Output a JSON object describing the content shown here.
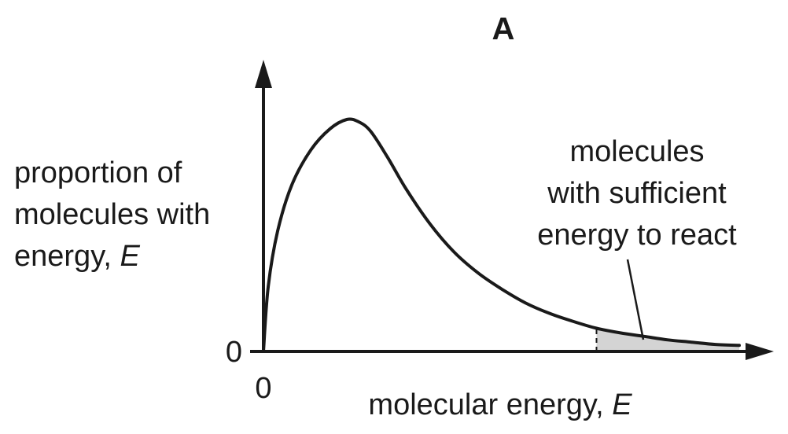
{
  "chart_data": {
    "type": "line",
    "title": "A",
    "xlabel": "molecular energy, ",
    "xlabel_var": "E",
    "ylabel_lines": [
      "proportion of",
      "molecules with",
      "energy, "
    ],
    "ylabel_var": "E",
    "x_origin_label": "0",
    "y_origin_label": "0",
    "xlim": [
      0,
      1.0
    ],
    "ylim": [
      0,
      1.0
    ],
    "series": [
      {
        "x": [
          0,
          0.01,
          0.03,
          0.06,
          0.1,
          0.14,
          0.175,
          0.2,
          0.225,
          0.26,
          0.3,
          0.35,
          0.4,
          0.45,
          0.5,
          0.55,
          0.6,
          0.65,
          0.7,
          0.75,
          0.8,
          0.85,
          0.9,
          0.95,
          1.0
        ],
        "values": [
          0,
          0.28,
          0.52,
          0.72,
          0.87,
          0.96,
          1.0,
          0.99,
          0.95,
          0.84,
          0.7,
          0.55,
          0.43,
          0.34,
          0.27,
          0.21,
          0.165,
          0.13,
          0.1,
          0.08,
          0.065,
          0.05,
          0.04,
          0.03,
          0.026
        ]
      }
    ],
    "shaded_region": {
      "x_start": 0.7,
      "x_end": 1.0,
      "color": "#d4d4d4"
    },
    "annotation": {
      "lines": [
        "molecules",
        "with sufficient",
        "energy to react"
      ]
    },
    "grid": false,
    "legend": "none"
  }
}
